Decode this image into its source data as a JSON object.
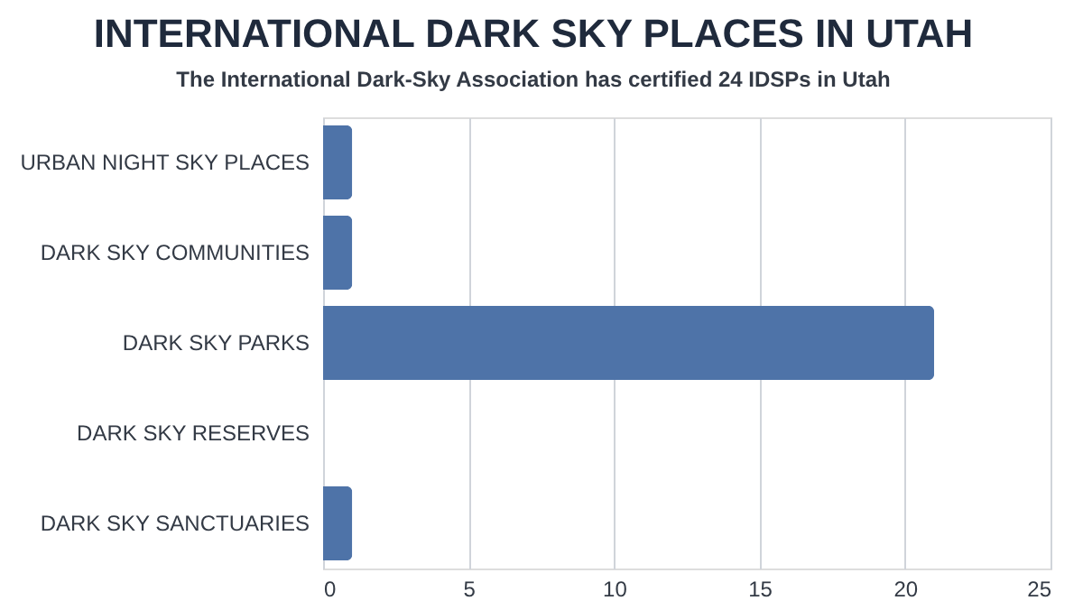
{
  "chart_data": {
    "type": "bar",
    "orientation": "horizontal",
    "title": "INTERNATIONAL DARK SKY PLACES IN UTAH",
    "subtitle": "The International Dark-Sky Association has certified 24 IDSPs in Utah",
    "categories": [
      "URBAN NIGHT SKY PLACES",
      "DARK SKY COMMUNITIES",
      "DARK SKY PARKS",
      "DARK SKY RESERVES",
      "DARK SKY SANCTUARIES"
    ],
    "values": [
      1,
      1,
      21,
      0,
      1
    ],
    "color": "#4e73a8",
    "xlim": [
      0,
      25
    ],
    "xticks": [
      0,
      5,
      10,
      15,
      20,
      25
    ],
    "grid": "x",
    "legend": false
  }
}
